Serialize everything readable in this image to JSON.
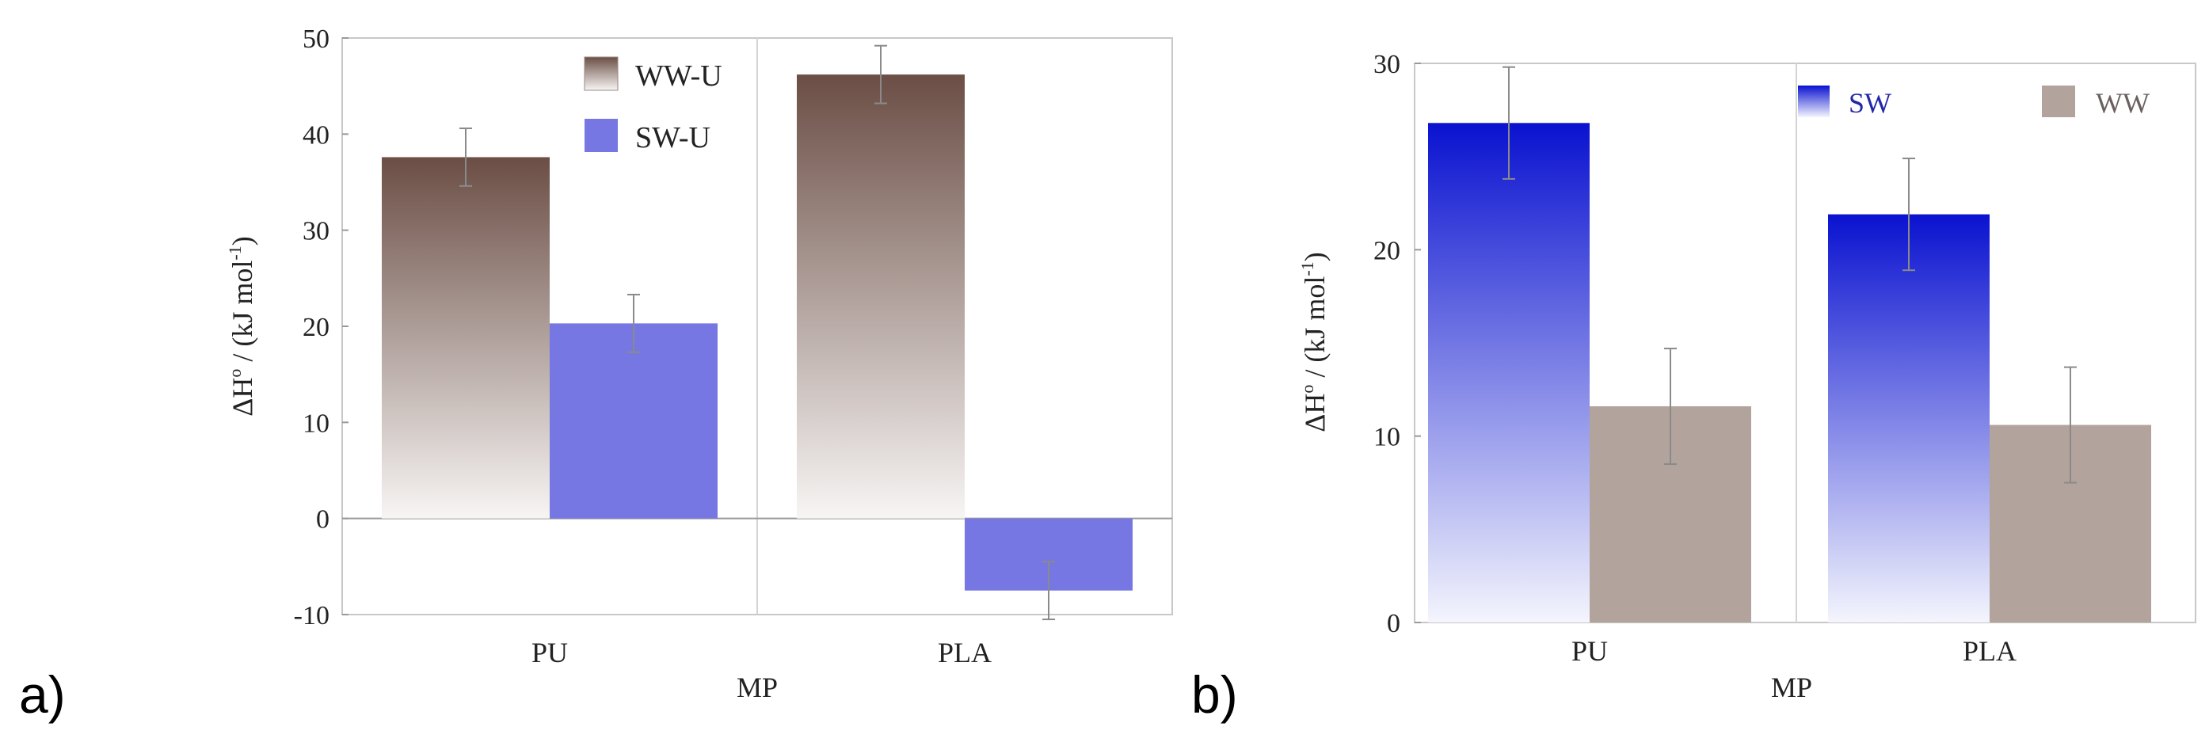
{
  "chart_data": [
    {
      "panel": "a)",
      "type": "bar",
      "categories": [
        "PU",
        "PLA"
      ],
      "xlabel": "MP",
      "ylabel": "ΔH° / (kJ mol-1)",
      "ylim": [
        -10,
        50
      ],
      "yticks": [
        -10,
        0,
        10,
        20,
        30,
        40,
        50
      ],
      "series": [
        {
          "name": "WW-U",
          "values": [
            37.6,
            46.2
          ],
          "errors": [
            3.0,
            3.0
          ],
          "color_top": "#6b4e45",
          "color_bottom": "#f7f5f4"
        },
        {
          "name": "SW-U",
          "values": [
            20.3,
            -7.5
          ],
          "errors": [
            3.0,
            3.0
          ],
          "color": "#7677e2"
        }
      ],
      "legend": "top-right",
      "grid": false
    },
    {
      "panel": "b)",
      "type": "bar",
      "categories": [
        "PU",
        "PLA"
      ],
      "xlabel": "MP",
      "ylabel": "ΔH° / (kJ mol-1)",
      "ylim": [
        0,
        30
      ],
      "yticks": [
        0,
        10,
        20,
        30
      ],
      "series": [
        {
          "name": "SW",
          "values": [
            26.8,
            21.9
          ],
          "errors": [
            3.0,
            3.0
          ],
          "color_top": "#0a12d0",
          "color_bottom": "#f4f5fd"
        },
        {
          "name": "WW",
          "values": [
            11.6,
            10.6
          ],
          "errors": [
            3.1,
            3.1
          ],
          "color": "#b2a39c"
        }
      ],
      "legend": "top-right",
      "grid": false
    }
  ]
}
